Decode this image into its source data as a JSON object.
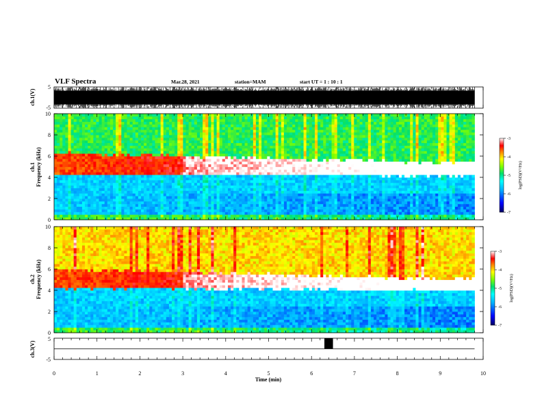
{
  "header": {
    "title": "VLF Spectra",
    "date": "Mar.28, 2021",
    "station": "station=MAM",
    "start": "start UT =  1 : 10 : 1"
  },
  "colors": {
    "spectrogram_scale": [
      "#00008b",
      "#0000ff",
      "#00a0ff",
      "#00ffff",
      "#00e060",
      "#80ff00",
      "#ffff00",
      "#ff8000",
      "#ff0000",
      "#ffffff"
    ],
    "waveform": "#000000"
  },
  "chart_data": [
    {
      "type": "line",
      "panel": "ch1-waveform",
      "ylabel": "ch.1(V)",
      "ylim": [
        -5,
        5
      ],
      "yticks": [
        "5",
        "-5"
      ],
      "description_values": {
        "amplitude_min": -5,
        "amplitude_max": 5
      },
      "x": [
        0,
        9.8
      ],
      "series": [
        {
          "values_range": [
            -5,
            5
          ]
        }
      ]
    },
    {
      "type": "heatmap",
      "panel": "ch1-spectrogram",
      "ylabel": "ch.1\nFrequency (kHz)",
      "ylabel_lines": [
        "ch.1",
        "Frequency (kHz)"
      ],
      "ylim": [
        0,
        10
      ],
      "yticks": [
        "0",
        "2",
        "4",
        "6",
        "8",
        "10"
      ],
      "xlim": [
        0,
        10
      ],
      "x_end": 9.8,
      "colorbar": {
        "label": "log(PSD)(V²/Hz)",
        "ticks": [
          "-3",
          "-4",
          "-5",
          "-6",
          "-7"
        ],
        "range": [
          -7,
          -3
        ]
      },
      "bands": [
        {
          "freq_khz": [
            4.3,
            6.3
          ],
          "log_psd": -3.3
        },
        {
          "freq_khz": [
            6.3,
            10
          ],
          "log_psd": -4.8
        },
        {
          "freq_khz": [
            0,
            4.3
          ],
          "log_psd": -5.6
        }
      ]
    },
    {
      "type": "heatmap",
      "panel": "ch2-spectrogram",
      "ylabel": "ch.2\nFrequency (kHz)",
      "ylabel_lines": [
        "ch.2",
        "Frequency (kHz)"
      ],
      "ylim": [
        0,
        10
      ],
      "yticks": [
        "0",
        "2",
        "4",
        "6",
        "8",
        "10"
      ],
      "xlim": [
        0,
        10
      ],
      "x_end": 9.8,
      "colorbar": {
        "label": "log(PSD)(V²/Hz)",
        "ticks": [
          "-3",
          "-4",
          "-5",
          "-6",
          "-7"
        ],
        "range": [
          -7,
          -3
        ]
      },
      "bands": [
        {
          "freq_khz": [
            4.2,
            6.0
          ],
          "log_psd": -3.3
        },
        {
          "freq_khz": [
            6.0,
            10
          ],
          "log_psd": -4.0
        },
        {
          "freq_khz": [
            0,
            4.2
          ],
          "log_psd": -5.6
        }
      ]
    },
    {
      "type": "line",
      "panel": "ch3-waveform",
      "ylabel": "ch.3(V)",
      "ylim": [
        -5,
        5
      ],
      "yticks": [
        "5",
        "-5"
      ],
      "xlabel": "Time (min)",
      "xlim": [
        0,
        10
      ],
      "xticks": [
        "0",
        "1",
        "2",
        "3",
        "4",
        "5",
        "6",
        "7",
        "8",
        "9",
        "10"
      ],
      "baseline_v": 0,
      "pulse": {
        "t_start_min": 6.3,
        "t_end_min": 6.5,
        "v_high": 5,
        "v_low": 0
      }
    }
  ]
}
